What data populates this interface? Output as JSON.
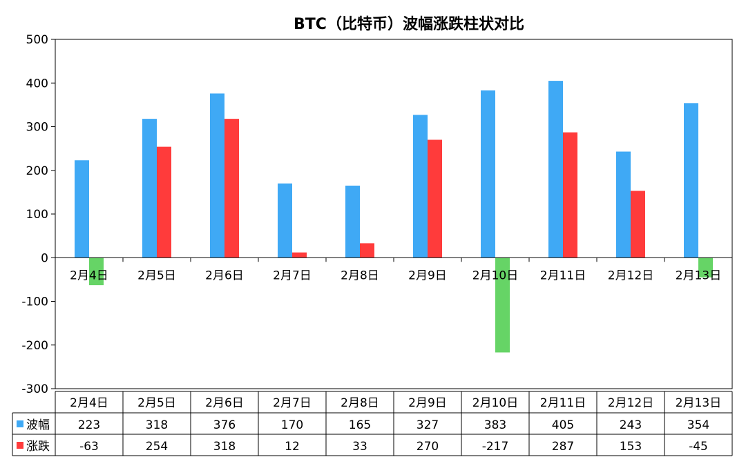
{
  "chart_data": {
    "type": "bar",
    "title": "BTC（比特币）波幅涨跌柱状对比",
    "categories": [
      "2月4日",
      "2月5日",
      "2月6日",
      "2月7日",
      "2月8日",
      "2月9日",
      "2月10日",
      "2月11日",
      "2月12日",
      "2月13日"
    ],
    "series": [
      {
        "name": "波幅",
        "color": "#3FA9F5",
        "values": [
          223,
          318,
          376,
          170,
          165,
          327,
          383,
          405,
          243,
          354
        ]
      },
      {
        "name": "涨跌",
        "color": "#FF3B3B",
        "values": [
          -63,
          254,
          318,
          12,
          33,
          270,
          -217,
          287,
          153,
          -45
        ]
      }
    ],
    "negative_color": "#66D466",
    "ylim": [
      -300,
      500
    ],
    "yticks": [
      "500",
      "400",
      "300",
      "200",
      "100",
      "0",
      "-100",
      "-200",
      "-300"
    ],
    "ytick_values": [
      500,
      400,
      300,
      200,
      100,
      0,
      -100,
      -200,
      -300
    ],
    "grid": false,
    "legend": "data-table",
    "xlabel": "",
    "ylabel": ""
  }
}
